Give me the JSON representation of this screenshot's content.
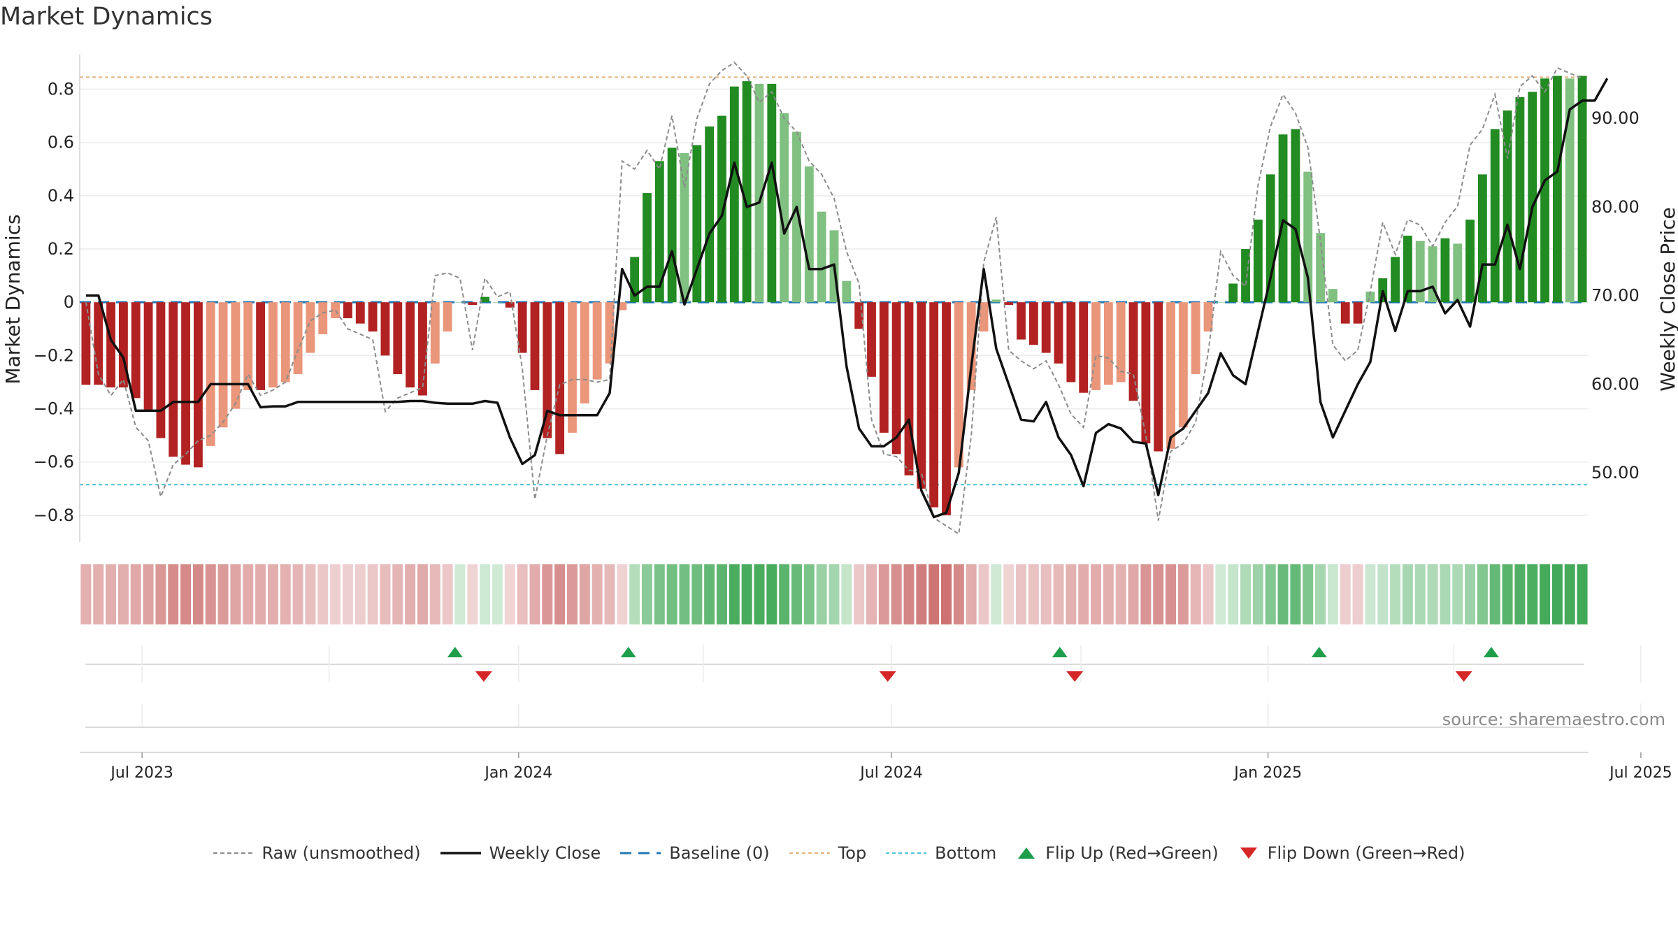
{
  "title": "Market Dynamics",
  "source": "source: sharemaestro.com",
  "colors": {
    "strong_red": "#b22222",
    "weak_red": "#e9967a",
    "strong_green": "#228b22",
    "weak_green": "#80c080",
    "raw_line": "#8c8c8c",
    "close_line": "#111111",
    "baseline": "#1f77b4",
    "top": "#e6b37a",
    "bottom": "#4fc3d9",
    "flip_up": "#1e9e4a",
    "flip_down": "#d62728"
  },
  "legend": [
    {
      "key": "raw",
      "label": "Raw (unsmoothed)"
    },
    {
      "key": "close",
      "label": "Weekly Close"
    },
    {
      "key": "baseline",
      "label": "Baseline (0)"
    },
    {
      "key": "top",
      "label": "Top"
    },
    {
      "key": "bottom",
      "label": "Bottom"
    },
    {
      "key": "flip_up",
      "label": "Flip Up (Red→Green)"
    },
    {
      "key": "flip_down",
      "label": "Flip Down (Green→Red)"
    }
  ],
  "chart_data": {
    "type": "bar",
    "title": "Market Dynamics",
    "ylabel": "Market Dynamics",
    "y2label": "Weekly Close Price",
    "ylim": [
      -0.9,
      0.93
    ],
    "y2lim": [
      42.2,
      97.2
    ],
    "y_ticks": [
      "−0.8",
      "−0.6",
      "−0.4",
      "−0.2",
      "0",
      "0.2",
      "0.4",
      "0.6",
      "0.8"
    ],
    "y_tick_values": [
      -0.8,
      -0.6,
      -0.4,
      -0.2,
      0,
      0.2,
      0.4,
      0.6,
      0.8
    ],
    "y2_ticks": [
      "50.00",
      "60.00",
      "70.00",
      "80.00",
      "90.00"
    ],
    "y2_tick_values": [
      50,
      60,
      70,
      80,
      90
    ],
    "x_ticks": [
      "Jul 2023",
      "Jan 2024",
      "Jul 2024",
      "Jan 2025",
      "Jul 2025"
    ],
    "x_tick_weeks": [
      4.5,
      34.7,
      64.6,
      94.8,
      124.7
    ],
    "top_line": 0.845,
    "bottom_line": -0.685,
    "baseline": 0,
    "bar_values": [
      -0.31,
      -0.31,
      -0.32,
      -0.32,
      -0.36,
      -0.41,
      -0.51,
      -0.58,
      -0.61,
      -0.62,
      -0.54,
      -0.47,
      -0.4,
      -0.33,
      -0.33,
      -0.32,
      -0.3,
      -0.27,
      -0.19,
      -0.12,
      -0.06,
      -0.06,
      -0.08,
      -0.11,
      -0.2,
      -0.27,
      -0.32,
      -0.35,
      -0.23,
      -0.11,
      0.0,
      -0.01,
      0.02,
      0.0,
      -0.02,
      -0.19,
      -0.33,
      -0.51,
      -0.57,
      -0.49,
      -0.38,
      -0.29,
      -0.23,
      -0.03,
      0.17,
      0.41,
      0.53,
      0.58,
      0.56,
      0.59,
      0.66,
      0.7,
      0.81,
      0.83,
      0.82,
      0.82,
      0.71,
      0.64,
      0.51,
      0.34,
      0.27,
      0.08,
      -0.1,
      -0.28,
      -0.49,
      -0.57,
      -0.65,
      -0.7,
      -0.77,
      -0.8,
      -0.62,
      -0.33,
      -0.11,
      0.01,
      -0.01,
      -0.14,
      -0.16,
      -0.19,
      -0.23,
      -0.3,
      -0.34,
      -0.33,
      -0.31,
      -0.3,
      -0.37,
      -0.53,
      -0.56,
      -0.55,
      -0.47,
      -0.27,
      -0.11,
      0.0,
      0.07,
      0.2,
      0.31,
      0.48,
      0.63,
      0.65,
      0.49,
      0.26,
      0.05,
      -0.08,
      -0.08,
      0.04,
      0.09,
      0.17,
      0.25,
      0.23,
      0.21,
      0.24,
      0.22,
      0.31,
      0.48,
      0.65,
      0.72,
      0.77,
      0.79,
      0.84,
      0.85,
      0.84,
      0.85
    ],
    "raw_values": [
      0.0,
      -0.27,
      -0.35,
      -0.29,
      -0.47,
      -0.52,
      -0.73,
      -0.61,
      -0.57,
      -0.52,
      -0.5,
      -0.45,
      -0.38,
      -0.27,
      -0.35,
      -0.33,
      -0.3,
      -0.18,
      -0.07,
      -0.04,
      -0.03,
      -0.1,
      -0.12,
      -0.14,
      -0.41,
      -0.36,
      -0.34,
      -0.32,
      0.1,
      0.11,
      0.09,
      -0.18,
      0.09,
      0.02,
      0.04,
      -0.25,
      -0.74,
      -0.5,
      -0.31,
      -0.29,
      -0.29,
      -0.3,
      -0.29,
      0.53,
      0.5,
      0.57,
      0.5,
      0.7,
      0.43,
      0.69,
      0.82,
      0.87,
      0.9,
      0.85,
      0.75,
      0.79,
      0.69,
      0.64,
      0.53,
      0.48,
      0.39,
      0.19,
      0.07,
      -0.44,
      -0.57,
      -0.58,
      -0.63,
      -0.64,
      -0.81,
      -0.84,
      -0.87,
      -0.5,
      0.15,
      0.32,
      -0.18,
      -0.22,
      -0.25,
      -0.22,
      -0.31,
      -0.42,
      -0.47,
      -0.2,
      -0.21,
      -0.26,
      -0.27,
      -0.5,
      -0.82,
      -0.56,
      -0.53,
      -0.45,
      -0.19,
      0.19,
      0.1,
      0.06,
      0.44,
      0.66,
      0.78,
      0.71,
      0.58,
      0.23,
      -0.16,
      -0.22,
      -0.18,
      0.04,
      0.3,
      0.18,
      0.31,
      0.29,
      0.21,
      0.3,
      0.36,
      0.59,
      0.65,
      0.78,
      0.54,
      0.81,
      0.85,
      0.79,
      0.88,
      0.86,
      0.84
    ],
    "close_values": [
      70,
      70,
      65,
      63,
      57,
      57,
      57,
      58,
      58,
      58,
      60,
      60,
      60,
      60,
      57.4,
      57.5,
      57.5,
      58,
      58,
      58,
      58,
      58,
      58,
      58,
      58,
      58,
      58.1,
      58.1,
      57.9,
      57.8,
      57.8,
      57.8,
      58.1,
      57.9,
      54,
      51,
      52,
      57,
      56.5,
      56.5,
      56.5,
      56.5,
      59,
      73,
      70,
      71,
      71,
      75,
      69,
      73,
      77,
      79,
      85,
      80,
      80.5,
      85,
      77,
      80,
      73,
      73,
      73.5,
      62,
      55,
      53,
      53,
      54,
      56,
      48,
      45,
      45.5,
      50,
      62,
      73,
      64,
      60,
      56,
      55.8,
      58,
      54,
      52,
      48.5,
      54.5,
      55.5,
      55,
      53.5,
      53.3,
      47.5,
      54,
      55,
      57,
      59,
      63.5,
      61,
      60,
      66,
      72,
      78.5,
      77.5,
      72,
      58,
      54,
      57,
      60,
      62.5,
      70.5,
      66,
      70.5,
      70.5,
      71,
      68,
      69.5,
      66.5,
      73.5,
      73.5,
      78,
      73,
      80,
      83,
      84,
      91,
      92,
      92,
      94.5
    ],
    "flip_up_weeks": [
      29.6,
      43.5,
      78.1,
      98.9,
      112.7
    ],
    "flip_down_weeks": [
      31.9,
      64.3,
      79.3,
      110.5
    ]
  }
}
